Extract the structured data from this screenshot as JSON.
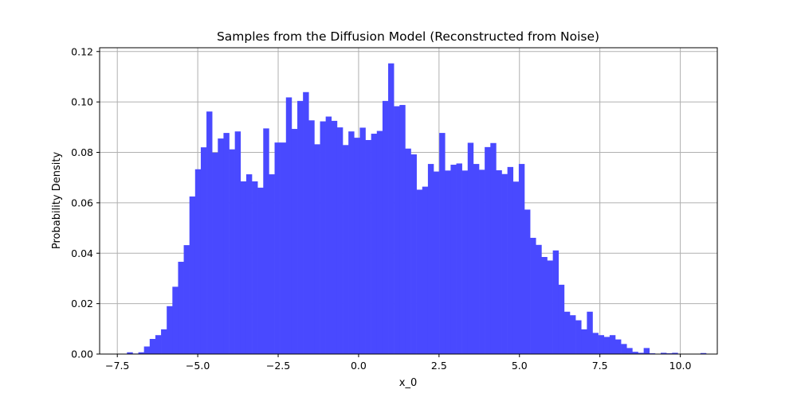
{
  "chart_data": {
    "type": "bar",
    "title": "Samples from the Diffusion Model (Reconstructed from Noise)",
    "xlabel": "x_0",
    "ylabel": "Probability Density",
    "xlim": [
      -8.05,
      11.15
    ],
    "ylim": [
      0,
      0.1215
    ],
    "grid": true,
    "bar_color": "#4949FF",
    "xticks": [
      -7.5,
      -5.0,
      -2.5,
      0.0,
      2.5,
      5.0,
      7.5,
      10.0
    ],
    "xtick_labels": [
      "−7.5",
      "−5.0",
      "−2.5",
      "0.0",
      "2.5",
      "5.0",
      "7.5",
      "10.0"
    ],
    "yticks": [
      0.0,
      0.02,
      0.04,
      0.06,
      0.08,
      0.1,
      0.12
    ],
    "ytick_labels": [
      "0.00",
      "0.02",
      "0.04",
      "0.06",
      "0.08",
      "0.10",
      "0.12"
    ],
    "bin_start": -7.2,
    "bin_width": 0.1765,
    "values": [
      0.0007,
      0.0002,
      0.0007,
      0.003,
      0.006,
      0.0075,
      0.0098,
      0.019,
      0.0267,
      0.0366,
      0.0432,
      0.0625,
      0.0733,
      0.082,
      0.0962,
      0.0799,
      0.0855,
      0.0877,
      0.0812,
      0.0883,
      0.0685,
      0.0713,
      0.0685,
      0.066,
      0.0895,
      0.0713,
      0.0839,
      0.0839,
      0.1018,
      0.0893,
      0.1004,
      0.1039,
      0.0927,
      0.0832,
      0.0923,
      0.0942,
      0.0925,
      0.0899,
      0.0829,
      0.0883,
      0.0858,
      0.0898,
      0.0849,
      0.0874,
      0.0885,
      0.1004,
      0.1153,
      0.0983,
      0.0988,
      0.0815,
      0.0792,
      0.0652,
      0.0664,
      0.0754,
      0.0724,
      0.0877,
      0.0728,
      0.0751,
      0.0756,
      0.0728,
      0.0838,
      0.0754,
      0.0731,
      0.0821,
      0.0837,
      0.0729,
      0.0714,
      0.0742,
      0.0684,
      0.0754,
      0.0573,
      0.0461,
      0.0433,
      0.0385,
      0.0371,
      0.0411,
      0.0275,
      0.0168,
      0.0154,
      0.0134,
      0.0098,
      0.0168,
      0.0084,
      0.0075,
      0.0068,
      0.0075,
      0.0058,
      0.004,
      0.0024,
      0.0009,
      0.0005,
      0.0024,
      0.0003,
      0.0,
      0.0005,
      0.0003,
      0.0005,
      0.0,
      0.0,
      0.0,
      0.0,
      0.0004
    ]
  }
}
